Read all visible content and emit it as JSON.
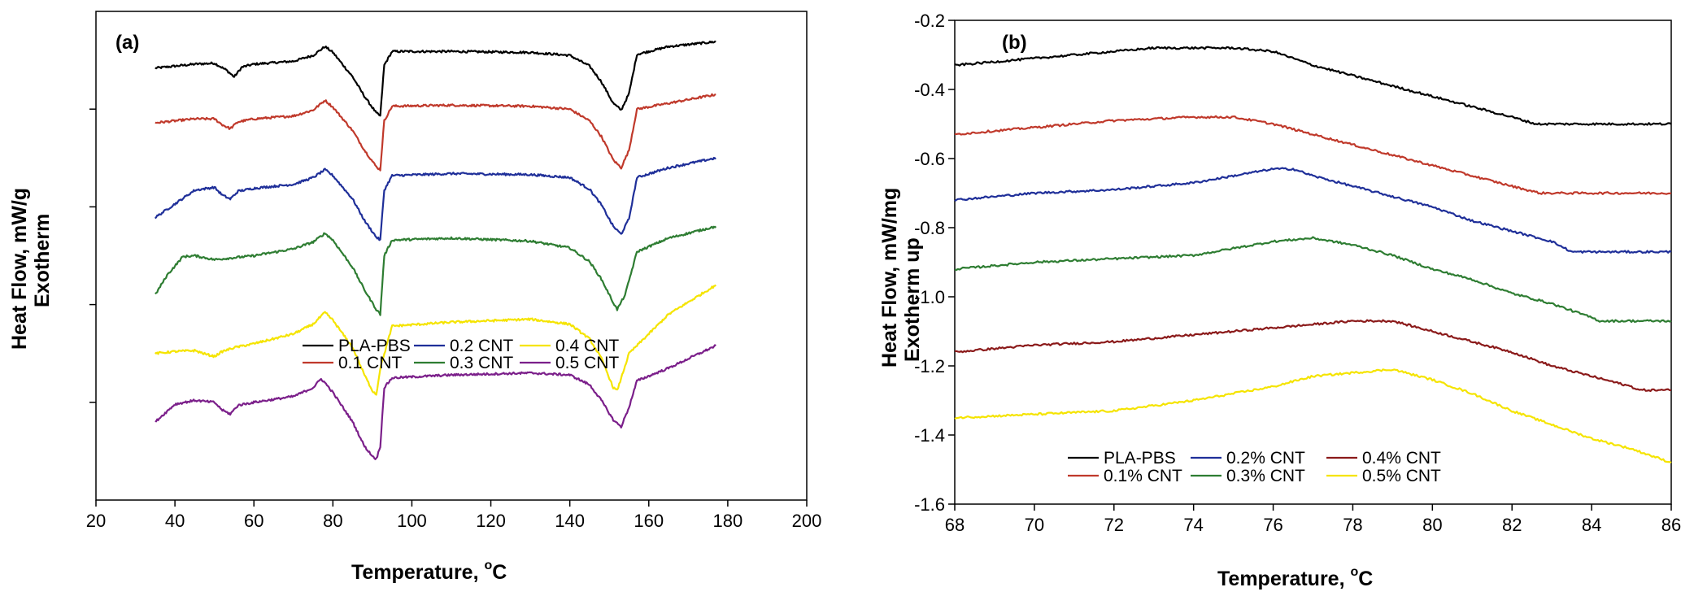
{
  "chart_data": [
    {
      "id": "a",
      "type": "line",
      "panel_label": "(a)",
      "xlabel": "Temperature, °C",
      "xlabel_main": "Temperature, ",
      "xlabel_deg": "o",
      "xlabel_unit": "C",
      "ylabel_line1": "Heat Flow, mW/g",
      "ylabel_line2": "Exotherm",
      "xlim": [
        20,
        200
      ],
      "xticks": [
        20,
        40,
        60,
        80,
        100,
        120,
        140,
        160,
        180,
        200
      ],
      "ylim": [
        0,
        5
      ],
      "yticks": [
        1,
        2,
        3,
        4
      ],
      "ytick_labels_shown": false,
      "legend_position": "bottom-right",
      "legend_columns": 3,
      "series": [
        {
          "name": "PLA-PBS",
          "color": "#000000",
          "legend_row": 0,
          "legend_col": 0,
          "x": [
            35,
            45,
            50,
            53,
            55,
            57,
            60,
            70,
            75,
            78,
            80,
            85,
            88,
            91,
            92,
            93,
            95,
            110,
            130,
            140,
            145,
            148,
            151,
            153,
            155,
            157,
            165,
            177
          ],
          "y": [
            4.42,
            4.46,
            4.47,
            4.4,
            4.33,
            4.43,
            4.46,
            4.49,
            4.55,
            4.64,
            4.58,
            4.33,
            4.13,
            3.96,
            3.93,
            4.45,
            4.59,
            4.59,
            4.58,
            4.55,
            4.44,
            4.28,
            4.06,
            3.99,
            4.16,
            4.56,
            4.64,
            4.69
          ]
        },
        {
          "name": "0.1 CNT",
          "color": "#c0392b",
          "legend_row": 1,
          "legend_col": 0,
          "x": [
            35,
            45,
            50,
            52,
            54,
            56,
            60,
            70,
            75,
            78,
            80,
            85,
            88,
            91,
            92,
            93,
            95,
            110,
            130,
            140,
            145,
            148,
            151,
            153,
            155,
            157,
            165,
            177
          ],
          "y": [
            3.86,
            3.9,
            3.9,
            3.84,
            3.8,
            3.87,
            3.9,
            3.93,
            3.99,
            4.09,
            4.02,
            3.78,
            3.58,
            3.41,
            3.38,
            3.88,
            4.03,
            4.04,
            4.03,
            4.0,
            3.88,
            3.72,
            3.48,
            3.4,
            3.58,
            4.0,
            4.06,
            4.15
          ]
        },
        {
          "name": "0.2 CNT",
          "color": "#1f2f99",
          "legend_row": 0,
          "legend_col": 1,
          "x": [
            35,
            45,
            50,
            52,
            54,
            56,
            60,
            70,
            75,
            78,
            80,
            85,
            88,
            91,
            92,
            93,
            95,
            110,
            130,
            140,
            145,
            148,
            151,
            153,
            155,
            157,
            165,
            177
          ],
          "y": [
            2.89,
            3.17,
            3.2,
            3.12,
            3.08,
            3.16,
            3.19,
            3.23,
            3.3,
            3.38,
            3.32,
            3.08,
            2.86,
            2.69,
            2.66,
            3.17,
            3.32,
            3.34,
            3.33,
            3.3,
            3.18,
            3.02,
            2.8,
            2.72,
            2.88,
            3.3,
            3.4,
            3.5
          ]
        },
        {
          "name": "0.3 CNT",
          "color": "#2e7d32",
          "legend_row": 1,
          "legend_col": 1,
          "x": [
            35,
            38,
            42,
            45,
            50,
            60,
            70,
            75,
            78,
            80,
            85,
            88,
            91,
            92,
            93,
            95,
            110,
            130,
            140,
            145,
            148,
            151,
            152,
            154,
            157,
            165,
            177
          ],
          "y": [
            2.1,
            2.3,
            2.49,
            2.5,
            2.46,
            2.5,
            2.57,
            2.64,
            2.73,
            2.66,
            2.38,
            2.15,
            1.95,
            1.9,
            2.5,
            2.66,
            2.68,
            2.65,
            2.58,
            2.44,
            2.26,
            2.02,
            1.95,
            2.1,
            2.54,
            2.68,
            2.8
          ]
        },
        {
          "name": "0.4 CNT",
          "color": "#f5e400",
          "legend_row": 0,
          "legend_col": 2,
          "x": [
            35,
            40,
            45,
            48,
            50,
            52,
            55,
            60,
            70,
            75,
            78,
            80,
            85,
            88,
            90,
            91,
            92,
            95,
            110,
            130,
            140,
            145,
            148,
            150,
            151,
            152,
            155,
            165,
            177
          ],
          "y": [
            1.5,
            1.52,
            1.53,
            1.49,
            1.47,
            1.52,
            1.56,
            1.6,
            1.7,
            1.8,
            1.92,
            1.84,
            1.56,
            1.28,
            1.12,
            1.08,
            1.35,
            1.78,
            1.82,
            1.85,
            1.8,
            1.65,
            1.45,
            1.25,
            1.15,
            1.12,
            1.5,
            1.9,
            2.2
          ]
        },
        {
          "name": "0.5 CNT",
          "color": "#7b1f8a",
          "legend_row": 1,
          "legend_col": 2,
          "x": [
            35,
            40,
            45,
            50,
            52,
            54,
            56,
            60,
            70,
            75,
            77,
            78,
            80,
            85,
            88,
            90,
            91,
            92,
            93,
            95,
            110,
            130,
            140,
            145,
            148,
            151,
            153,
            155,
            157,
            165,
            177
          ],
          "y": [
            0.8,
            0.98,
            1.02,
            1.0,
            0.92,
            0.88,
            0.97,
            1.0,
            1.06,
            1.15,
            1.24,
            1.2,
            1.1,
            0.8,
            0.55,
            0.45,
            0.42,
            0.55,
            1.15,
            1.25,
            1.28,
            1.3,
            1.28,
            1.18,
            1.02,
            0.82,
            0.75,
            0.95,
            1.22,
            1.35,
            1.58
          ]
        }
      ]
    },
    {
      "id": "b",
      "type": "line",
      "panel_label": "(b)",
      "xlabel": "Temperature, °C",
      "xlabel_main": "Temperature, ",
      "xlabel_deg": "o",
      "xlabel_unit": "C",
      "ylabel_line1": "Heat Flow, mW/mg",
      "ylabel_line2": "Exotherm up",
      "xlim": [
        68,
        86
      ],
      "xticks": [
        68,
        70,
        72,
        74,
        76,
        78,
        80,
        82,
        84,
        86
      ],
      "ylim": [
        -1.6,
        -0.2
      ],
      "yticks": [
        -1.6,
        -1.4,
        -1.2,
        -1.0,
        -0.8,
        -0.6,
        -0.4,
        -0.2
      ],
      "ytick_labels": [
        "-1.6",
        "-1.4",
        "-1.2",
        "-1.0",
        "-0.8",
        "-0.6",
        "-0.4",
        "-0.2"
      ],
      "legend_position": "bottom-left",
      "legend_columns": 3,
      "series": [
        {
          "name": "PLA-PBS",
          "color": "#000000",
          "legend_row": 0,
          "legend_col": 0,
          "x": [
            68,
            70,
            72,
            73,
            74,
            75,
            76,
            77,
            78,
            79,
            80,
            81,
            82,
            82.6,
            83,
            84,
            85,
            86
          ],
          "y": [
            -0.33,
            -0.31,
            -0.29,
            -0.28,
            -0.28,
            -0.28,
            -0.29,
            -0.33,
            -0.36,
            -0.39,
            -0.42,
            -0.45,
            -0.48,
            -0.5,
            -0.5,
            -0.5,
            -0.5,
            -0.5
          ]
        },
        {
          "name": "0.1% CNT",
          "color": "#c0392b",
          "legend_row": 1,
          "legend_col": 0,
          "x": [
            68,
            70,
            72,
            74,
            75,
            76,
            77,
            78,
            79,
            80,
            81,
            82,
            82.7,
            83,
            84,
            85,
            86
          ],
          "y": [
            -0.53,
            -0.51,
            -0.49,
            -0.48,
            -0.48,
            -0.5,
            -0.53,
            -0.56,
            -0.59,
            -0.62,
            -0.65,
            -0.68,
            -0.7,
            -0.7,
            -0.7,
            -0.7,
            -0.7
          ]
        },
        {
          "name": "0.2% CNT",
          "color": "#1f2f99",
          "legend_row": 0,
          "legend_col": 1,
          "x": [
            68,
            70,
            72,
            74,
            75,
            76,
            76.5,
            77,
            78,
            79,
            80,
            81,
            82,
            83,
            83.5,
            84,
            85,
            86
          ],
          "y": [
            -0.72,
            -0.7,
            -0.69,
            -0.67,
            -0.65,
            -0.63,
            -0.63,
            -0.65,
            -0.68,
            -0.71,
            -0.74,
            -0.78,
            -0.81,
            -0.84,
            -0.87,
            -0.87,
            -0.87,
            -0.87
          ]
        },
        {
          "name": "0.3% CNT",
          "color": "#2e7d32",
          "legend_row": 1,
          "legend_col": 1,
          "x": [
            68,
            70,
            72,
            74,
            75,
            76,
            77,
            78,
            79,
            80,
            81,
            82,
            83,
            84,
            84.2,
            85,
            86
          ],
          "y": [
            -0.92,
            -0.9,
            -0.89,
            -0.88,
            -0.86,
            -0.84,
            -0.83,
            -0.85,
            -0.88,
            -0.92,
            -0.95,
            -0.99,
            -1.02,
            -1.06,
            -1.07,
            -1.07,
            -1.07
          ]
        },
        {
          "name": "0.4% CNT",
          "color": "#8b1a1a",
          "legend_row": 0,
          "legend_col": 2,
          "x": [
            68,
            70,
            72,
            74,
            76,
            77,
            78,
            79,
            80,
            81,
            82,
            83,
            84,
            85,
            85.2,
            86
          ],
          "y": [
            -1.16,
            -1.14,
            -1.13,
            -1.11,
            -1.09,
            -1.08,
            -1.07,
            -1.07,
            -1.1,
            -1.13,
            -1.16,
            -1.2,
            -1.23,
            -1.26,
            -1.27,
            -1.27
          ]
        },
        {
          "name": "0.5% CNT",
          "color": "#f5e400",
          "legend_row": 1,
          "legend_col": 2,
          "x": [
            68,
            70,
            72,
            74,
            76,
            77,
            78,
            79,
            80,
            81,
            82,
            83,
            84,
            85,
            86
          ],
          "y": [
            -1.35,
            -1.34,
            -1.33,
            -1.3,
            -1.26,
            -1.23,
            -1.22,
            -1.21,
            -1.24,
            -1.28,
            -1.33,
            -1.37,
            -1.41,
            -1.44,
            -1.48
          ]
        }
      ]
    }
  ]
}
